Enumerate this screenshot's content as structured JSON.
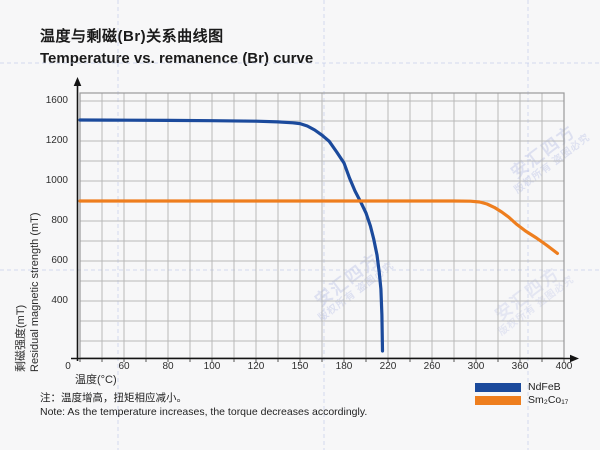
{
  "page": {
    "background": "#f7f7f8"
  },
  "watermark": {
    "line1": "安汇四方",
    "line2": "版权所有 盗图必究"
  },
  "note": {
    "line_zh": "注：温度增高，扭矩相应减小。",
    "line_en": "Note: As the temperature increases, the torque decreases accordingly."
  },
  "chart_data": {
    "type": "line",
    "title_zh": "温度与剩磁(Br)关系曲线图",
    "title_en": "Temperature vs. remanence (Br) curve",
    "x_axis": {
      "label_zh": "温度(°C)",
      "tick_labels": [
        0,
        60,
        80,
        100,
        120,
        150,
        180,
        220,
        260,
        300,
        360,
        400
      ],
      "spacing": "tick labels evenly spaced despite non-uniform values",
      "minor_gridline_between_each_pair": true
    },
    "y_axis": {
      "label_zh": "剩磁强度(mT)",
      "label_en": "Residual magnetic strength (mT)",
      "tick_labels": [
        1600,
        1200,
        1000,
        800,
        600,
        400
      ],
      "minor_gridline_between_each_pair": true
    },
    "grid": true,
    "legend_position": "bottom-right",
    "series": [
      {
        "name": "NdFeB",
        "color": "#1b4a9c",
        "points": [
          [
            0,
            1410
          ],
          [
            40,
            1409
          ],
          [
            80,
            1406
          ],
          [
            100,
            1403
          ],
          [
            120,
            1398
          ],
          [
            135,
            1391
          ],
          [
            145,
            1382
          ],
          [
            150,
            1374
          ],
          [
            155,
            1350
          ],
          [
            160,
            1310
          ],
          [
            165,
            1258
          ],
          [
            170,
            1198
          ],
          [
            175,
            1145
          ],
          [
            180,
            1090
          ],
          [
            185,
            1015
          ],
          [
            190,
            950
          ],
          [
            195,
            897
          ],
          [
            200,
            840
          ],
          [
            204,
            775
          ],
          [
            207,
            710
          ],
          [
            210,
            630
          ],
          [
            212,
            545
          ],
          [
            213.5,
            460
          ],
          [
            214.5,
            330
          ],
          [
            215,
            150
          ]
        ]
      },
      {
        "name": "Sm₂Co₁₇",
        "color": "#ee7e1e",
        "points": [
          [
            0,
            900
          ],
          [
            60,
            900
          ],
          [
            120,
            900
          ],
          [
            180,
            900
          ],
          [
            240,
            900
          ],
          [
            280,
            900
          ],
          [
            295,
            899
          ],
          [
            305,
            895
          ],
          [
            315,
            885
          ],
          [
            325,
            868
          ],
          [
            335,
            845
          ],
          [
            345,
            818
          ],
          [
            355,
            785
          ],
          [
            365,
            750
          ],
          [
            375,
            715
          ],
          [
            384,
            680
          ],
          [
            390,
            655
          ],
          [
            394,
            638
          ]
        ]
      }
    ],
    "colors": {
      "grid": "#b8b8b8",
      "plot_border": "#9a9a9a",
      "axis": "#141414",
      "guide_dashed": "#bcc8e8"
    }
  }
}
